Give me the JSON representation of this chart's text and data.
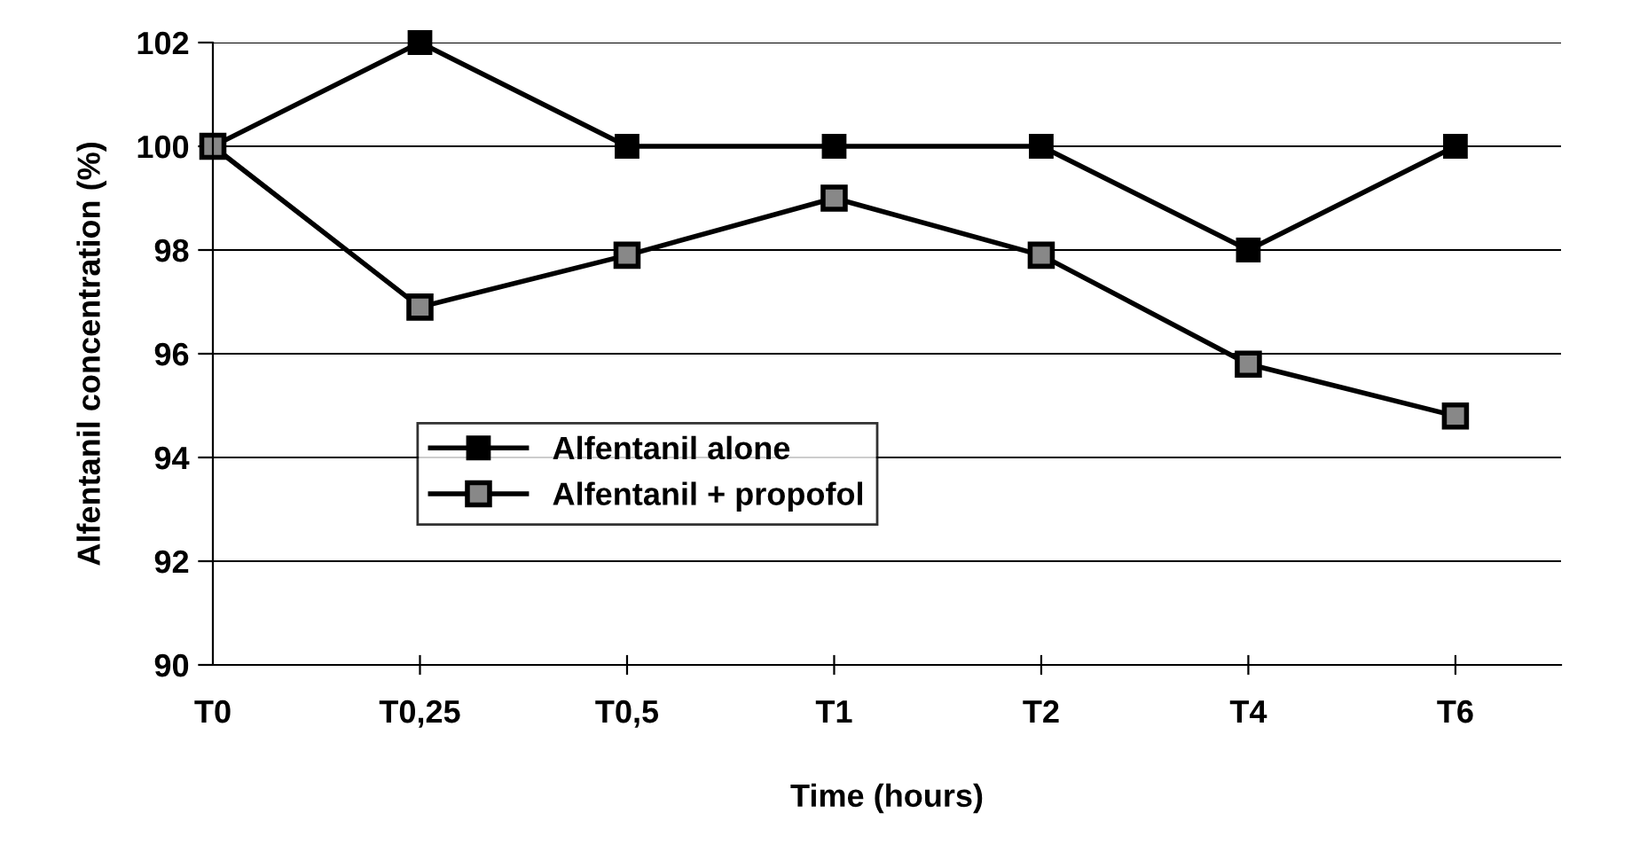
{
  "chart_data": {
    "type": "line",
    "xlabel": "Time (hours)",
    "ylabel": "Alfentanil concentration (%)",
    "categories": [
      "T0",
      "T0,25",
      "T0,5",
      "T1",
      "T2",
      "T4",
      "T6"
    ],
    "series": [
      {
        "name": "Alfentanil alone",
        "color": "#000000",
        "values": [
          100,
          102,
          100,
          100,
          100,
          98,
          100
        ]
      },
      {
        "name": "Alfentanil + propofol",
        "color": "#000000",
        "values": [
          100,
          96.9,
          97.9,
          99,
          97.9,
          95.8,
          94.8
        ]
      }
    ],
    "ylim": [
      90,
      102
    ],
    "yticks": [
      90,
      92,
      94,
      96,
      98,
      100,
      102
    ],
    "grid": "y",
    "legend": "center left",
    "marker": "square",
    "line_style": "solid"
  }
}
